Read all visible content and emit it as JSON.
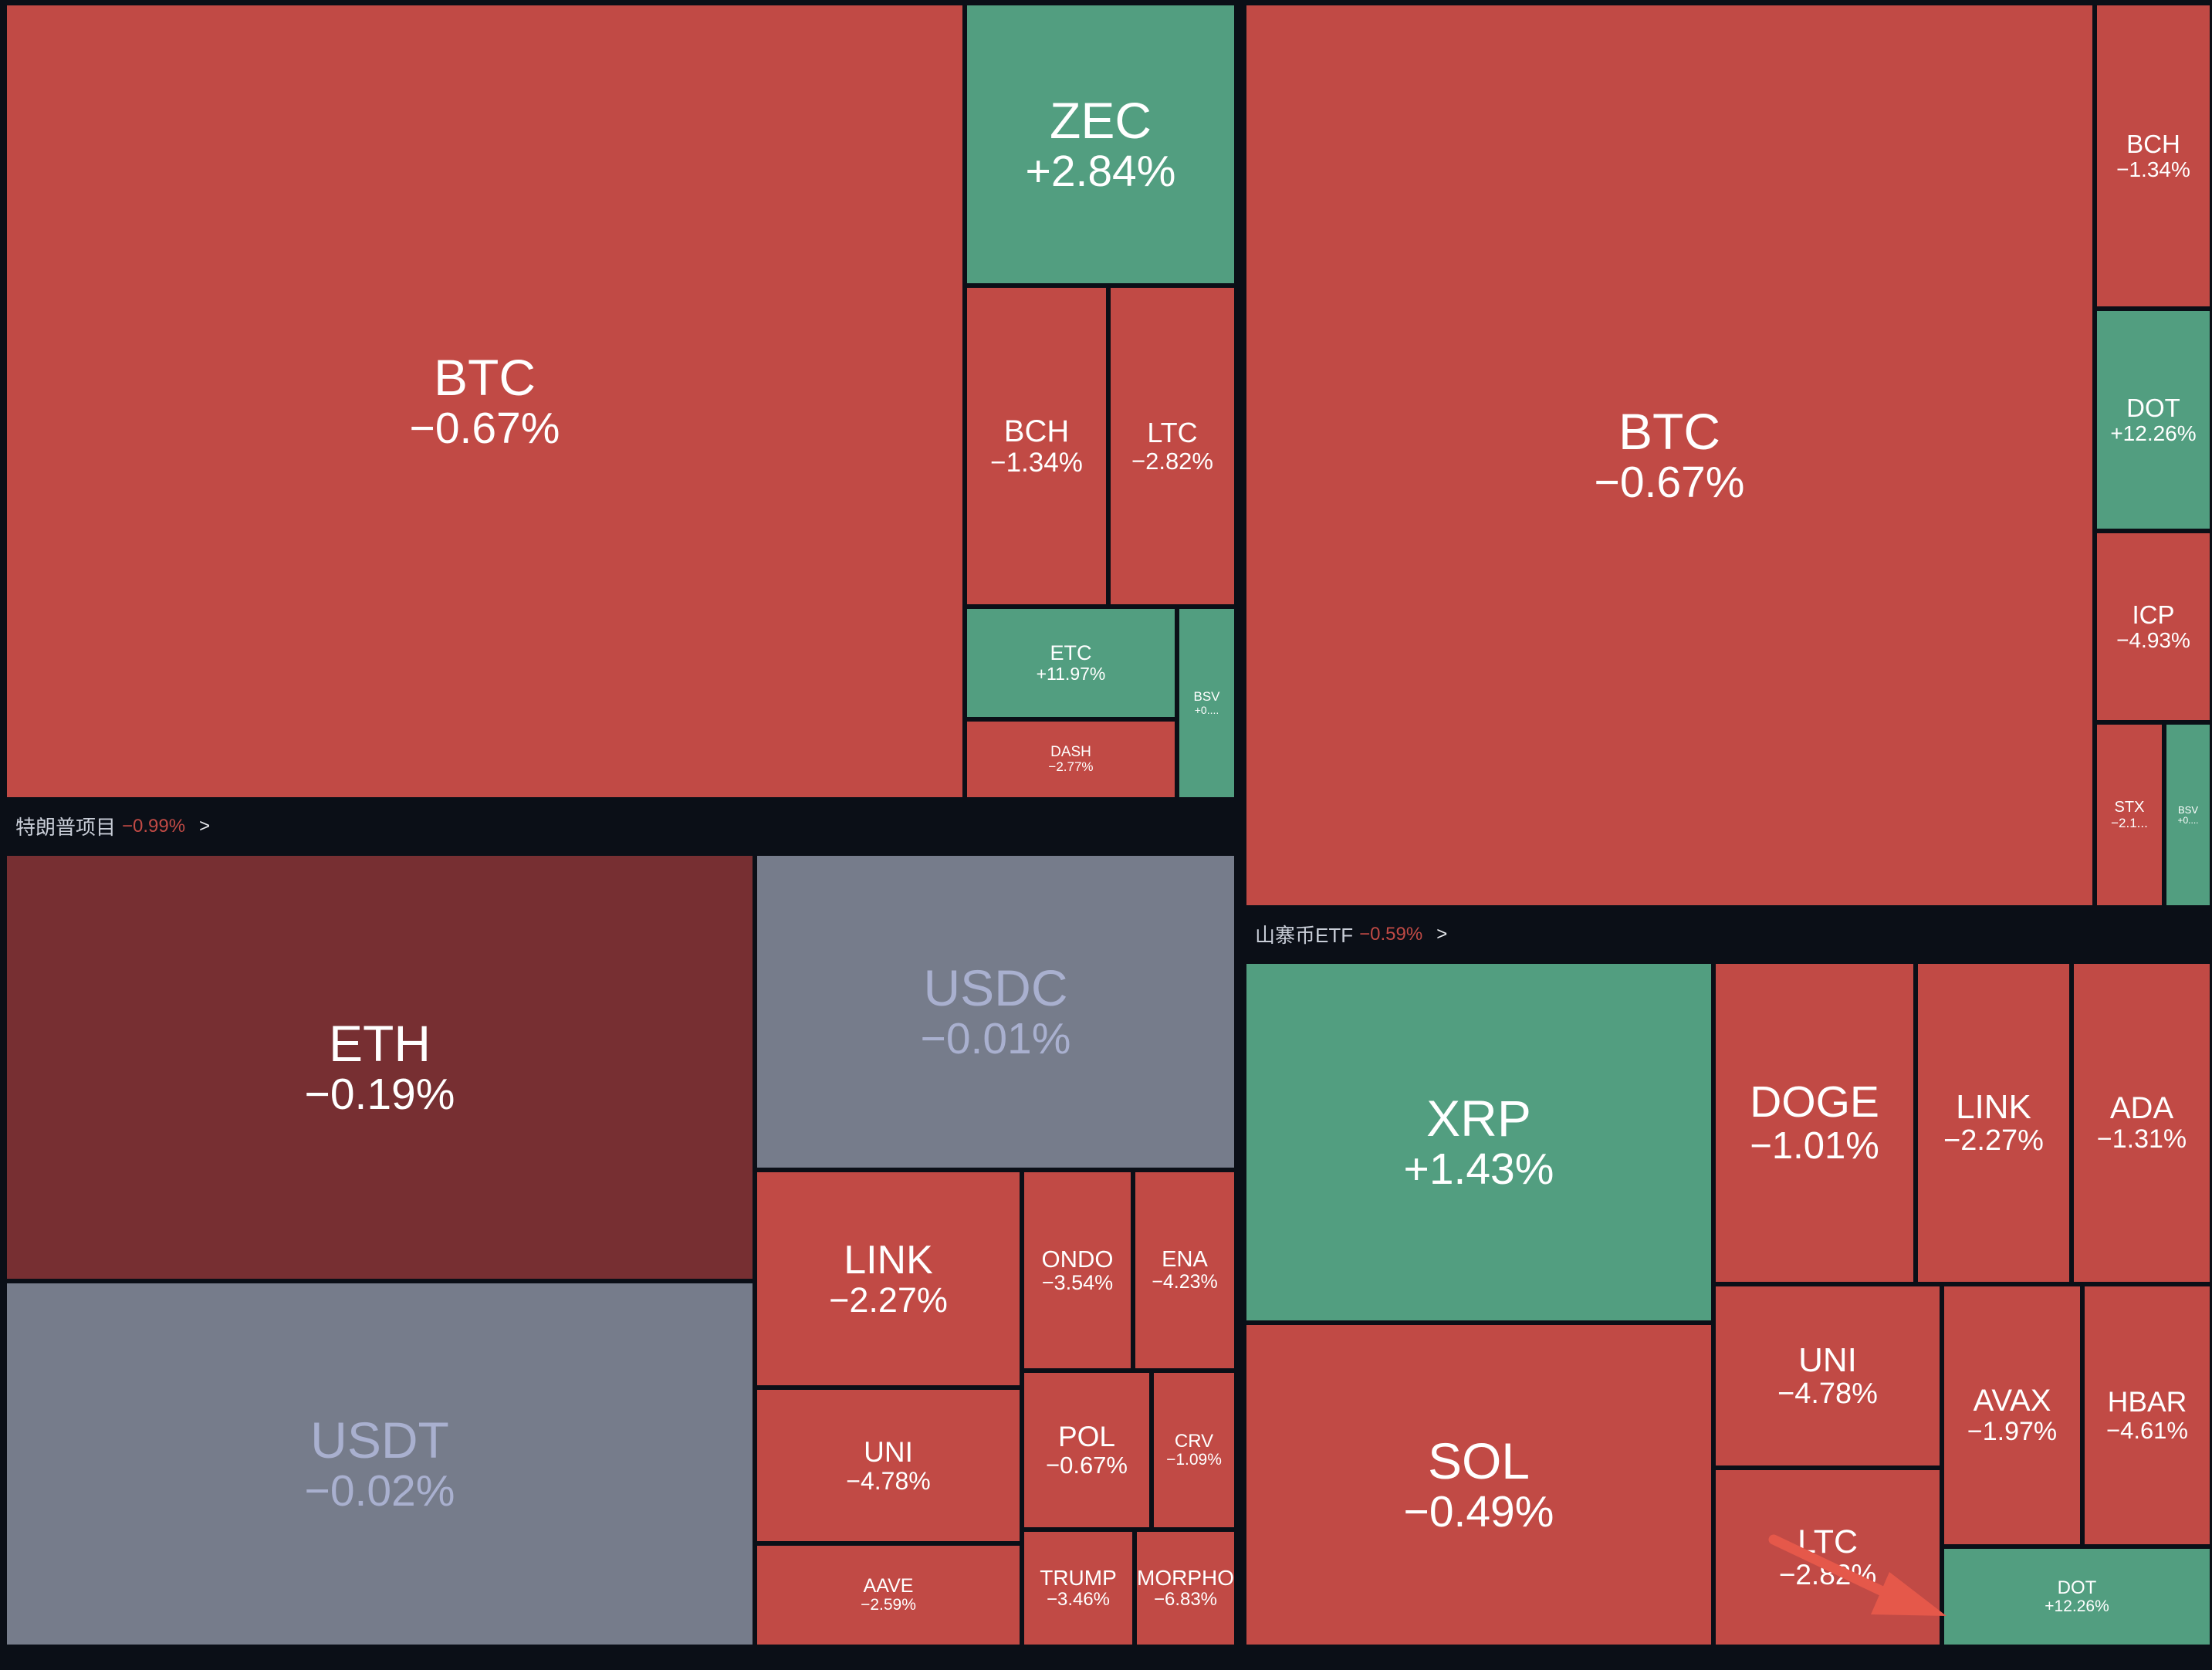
{
  "colors": {
    "background": "#0b0f17",
    "up": "#529e80",
    "down": "#c14a45",
    "down_dark": "#772f32",
    "stable": "#767c8b",
    "text": "#ffffff",
    "text_muted": "#a9b0cf",
    "header_text": "#c9ced8",
    "header_negative": "#c14a45",
    "annotation_arrow": "#e5584a"
  },
  "chart_data": {
    "type": "treemap",
    "groups": [
      {
        "name": "",
        "tiles": [
          {
            "symbol": "BTC",
            "change": "−0.67%",
            "value": -0.67
          },
          {
            "symbol": "ZEC",
            "change": "+2.84%",
            "value": 2.84
          },
          {
            "symbol": "BCH",
            "change": "−1.34%",
            "value": -1.34
          },
          {
            "symbol": "LTC",
            "change": "−2.82%",
            "value": -2.82
          },
          {
            "symbol": "ETC",
            "change": "+11.97%",
            "value": 11.97
          },
          {
            "symbol": "BSV",
            "change": "+0....",
            "value": null,
            "trend": "up"
          },
          {
            "symbol": "DASH",
            "change": "−2.77%",
            "value": -2.77
          }
        ]
      },
      {
        "name": "特朗普项目",
        "change": "−0.99%",
        "arrow": ">",
        "tiles": [
          {
            "symbol": "ETH",
            "change": "−0.19%",
            "value": -0.19,
            "shade": "dark"
          },
          {
            "symbol": "USDC",
            "change": "−0.01%",
            "value": -0.01,
            "shade": "stable"
          },
          {
            "symbol": "USDT",
            "change": "−0.02%",
            "value": -0.02,
            "shade": "stable"
          },
          {
            "symbol": "LINK",
            "change": "−2.27%",
            "value": -2.27
          },
          {
            "symbol": "ONDO",
            "change": "−3.54%",
            "value": -3.54
          },
          {
            "symbol": "ENA",
            "change": "−4.23%",
            "value": -4.23
          },
          {
            "symbol": "UNI",
            "change": "−4.78%",
            "value": -4.78
          },
          {
            "symbol": "POL",
            "change": "−0.67%",
            "value": -0.67
          },
          {
            "symbol": "CRV",
            "change": "−1.09%",
            "value": -1.09
          },
          {
            "symbol": "AAVE",
            "change": "−2.59%",
            "value": -2.59
          },
          {
            "symbol": "TRUMP",
            "change": "−3.46%",
            "value": -3.46
          },
          {
            "symbol": "MORPHO",
            "change": "−6.83%",
            "value": -6.83
          }
        ]
      },
      {
        "name": "",
        "tiles": [
          {
            "symbol": "BTC",
            "change": "−0.67%",
            "value": -0.67
          },
          {
            "symbol": "BCH",
            "change": "−1.34%",
            "value": -1.34
          },
          {
            "symbol": "DOT",
            "change": "+12.26%",
            "value": 12.26
          },
          {
            "symbol": "ICP",
            "change": "−4.93%",
            "value": -4.93
          },
          {
            "symbol": "STX",
            "change": "−2.1...",
            "value": null,
            "trend": "down"
          },
          {
            "symbol": "BSV",
            "change": "+0....",
            "value": null,
            "trend": "up"
          }
        ]
      },
      {
        "name": "山寨币ETF",
        "change": "−0.59%",
        "arrow": ">",
        "tiles": [
          {
            "symbol": "XRP",
            "change": "+1.43%",
            "value": 1.43
          },
          {
            "symbol": "SOL",
            "change": "−0.49%",
            "value": -0.49
          },
          {
            "symbol": "DOGE",
            "change": "−1.01%",
            "value": -1.01
          },
          {
            "symbol": "LINK",
            "change": "−2.27%",
            "value": -2.27
          },
          {
            "symbol": "ADA",
            "change": "−1.31%",
            "value": -1.31
          },
          {
            "symbol": "UNI",
            "change": "−4.78%",
            "value": -4.78
          },
          {
            "symbol": "AVAX",
            "change": "−1.97%",
            "value": -1.97
          },
          {
            "symbol": "HBAR",
            "change": "−4.61%",
            "value": -4.61
          },
          {
            "symbol": "LTC",
            "change": "−2.82%",
            "value": -2.82
          },
          {
            "symbol": "DOT",
            "change": "+12.26%",
            "value": 12.26
          }
        ]
      }
    ]
  }
}
